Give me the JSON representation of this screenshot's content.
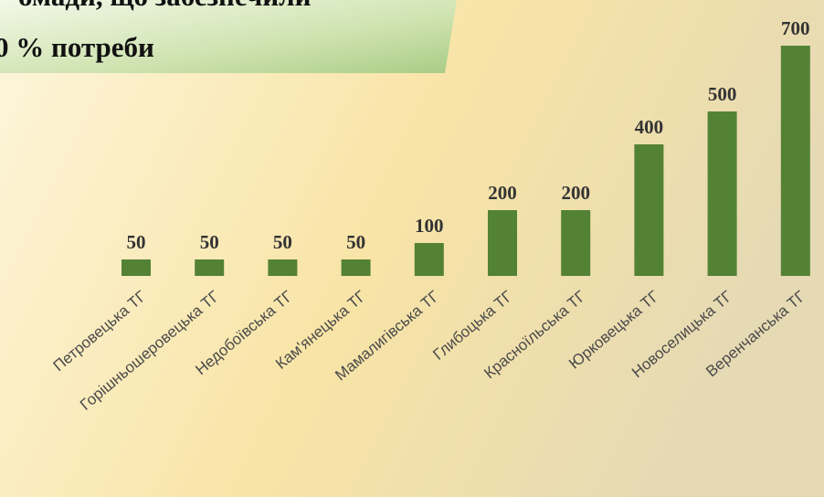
{
  "chart_data": {
    "type": "bar",
    "title": [
      "омади, що забезпечили",
      "0 % потреби"
    ],
    "categories": [
      "Петровецька ТГ",
      "Горішньошеровецька ТГ",
      "Недобоївська ТГ",
      "Кам'янецька ТГ",
      "Мамалигівська ТГ",
      "Глибоцька ТГ",
      "Красноїльська ТГ",
      "Юрковецька ТГ",
      "Новоселицька ТГ",
      "Веренчанська ТГ"
    ],
    "values": [
      50,
      50,
      50,
      50,
      100,
      200,
      200,
      400,
      500,
      700
    ],
    "color": "#548235",
    "ylim": [
      0,
      700
    ]
  }
}
